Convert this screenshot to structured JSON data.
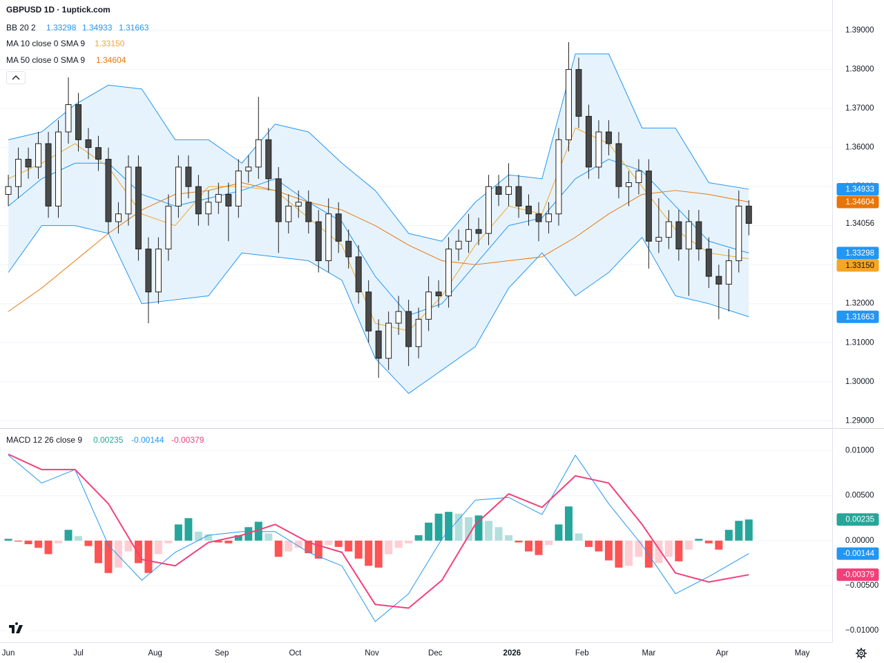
{
  "chart_data": [
    {
      "type": "candlestick",
      "title": "GBPUSD 1D · 1uptick.com",
      "xlim": [
        -2.5,
        247
      ],
      "xticks": [
        {
          "value": 0,
          "label": "Jun"
        },
        {
          "value": 21,
          "label": "Jul"
        },
        {
          "value": 44,
          "label": "Aug"
        },
        {
          "value": 64,
          "label": "Sep"
        },
        {
          "value": 86,
          "label": "Oct"
        },
        {
          "value": 109,
          "label": "Nov"
        },
        {
          "value": 128,
          "label": "Dec"
        },
        {
          "value": 151,
          "label": "2026"
        },
        {
          "value": 172,
          "label": "Feb"
        },
        {
          "value": 192,
          "label": "Mar"
        },
        {
          "value": 214,
          "label": "Apr"
        },
        {
          "value": 238,
          "label": "May"
        }
      ],
      "ylim": [
        1.2881,
        1.3978
      ],
      "yticks": [
        {
          "value": 1.39,
          "label": "1.39000"
        },
        {
          "value": 1.38,
          "label": "1.38000"
        },
        {
          "value": 1.37,
          "label": "1.37000"
        },
        {
          "value": 1.36,
          "label": "1.36000"
        },
        {
          "value": 1.35,
          "label": "1.35000"
        },
        {
          "value": 1.34,
          "label": "1.34000"
        },
        {
          "value": 1.33,
          "label": "1.33000"
        },
        {
          "value": 1.32,
          "label": "1.32000"
        },
        {
          "value": 1.31,
          "label": "1.31000"
        },
        {
          "value": 1.3,
          "label": "1.30000"
        },
        {
          "value": 1.29,
          "label": "1.29000"
        }
      ],
      "grid": true,
      "up_color": "#ffffff",
      "down_color": "#4a4a4a",
      "wick_color": "#1e1e1e",
      "x": [
        0,
        3,
        6,
        9,
        12,
        15,
        18,
        21,
        24,
        27,
        30,
        33,
        36,
        39,
        42,
        45,
        48,
        51,
        54,
        57,
        60,
        63,
        66,
        69,
        72,
        75,
        78,
        81,
        84,
        87,
        90,
        93,
        96,
        99,
        102,
        105,
        108,
        111,
        114,
        117,
        120,
        123,
        126,
        129,
        132,
        135,
        138,
        141,
        144,
        147,
        150,
        153,
        156,
        159,
        162,
        165,
        168,
        171,
        174,
        177,
        180,
        183,
        186,
        189,
        192,
        195,
        198,
        201,
        204,
        207,
        210,
        213,
        216,
        219,
        222
      ],
      "open": [
        1.348,
        1.35,
        1.357,
        1.355,
        1.361,
        1.345,
        1.364,
        1.371,
        1.362,
        1.36,
        1.357,
        1.341,
        1.343,
        1.355,
        1.334,
        1.323,
        1.334,
        1.345,
        1.355,
        1.35,
        1.343,
        1.346,
        1.348,
        1.345,
        1.354,
        1.355,
        1.362,
        1.352,
        1.341,
        1.345,
        1.346,
        1.341,
        1.331,
        1.343,
        1.336,
        1.332,
        1.323,
        1.313,
        1.306,
        1.315,
        1.318,
        1.309,
        1.316,
        1.323,
        1.322,
        1.334,
        1.336,
        1.339,
        1.338,
        1.35,
        1.348,
        1.35,
        1.345,
        1.343,
        1.341,
        1.343,
        1.362,
        1.38,
        1.368,
        1.355,
        1.364,
        1.361,
        1.35,
        1.351,
        1.354,
        1.336,
        1.337,
        1.341,
        1.334,
        1.341,
        1.334,
        1.327,
        1.325,
        1.331,
        1.345
      ],
      "high": [
        1.353,
        1.36,
        1.36,
        1.364,
        1.364,
        1.367,
        1.378,
        1.374,
        1.365,
        1.363,
        1.36,
        1.346,
        1.358,
        1.358,
        1.337,
        1.337,
        1.348,
        1.358,
        1.358,
        1.353,
        1.349,
        1.351,
        1.351,
        1.357,
        1.358,
        1.373,
        1.365,
        1.355,
        1.348,
        1.349,
        1.349,
        1.344,
        1.347,
        1.346,
        1.339,
        1.335,
        1.326,
        1.316,
        1.318,
        1.322,
        1.321,
        1.319,
        1.327,
        1.326,
        1.337,
        1.339,
        1.343,
        1.342,
        1.353,
        1.353,
        1.356,
        1.353,
        1.348,
        1.346,
        1.346,
        1.365,
        1.387,
        1.383,
        1.371,
        1.367,
        1.367,
        1.364,
        1.354,
        1.357,
        1.357,
        1.347,
        1.344,
        1.344,
        1.344,
        1.344,
        1.337,
        1.33,
        1.334,
        1.349,
        1.3465
      ],
      "low": [
        1.345,
        1.347,
        1.352,
        1.352,
        1.342,
        1.342,
        1.361,
        1.359,
        1.357,
        1.354,
        1.338,
        1.338,
        1.34,
        1.331,
        1.315,
        1.32,
        1.331,
        1.342,
        1.347,
        1.34,
        1.34,
        1.343,
        1.336,
        1.342,
        1.351,
        1.352,
        1.349,
        1.333,
        1.338,
        1.342,
        1.338,
        1.328,
        1.328,
        1.333,
        1.329,
        1.32,
        1.31,
        1.301,
        1.303,
        1.312,
        1.304,
        1.306,
        1.313,
        1.319,
        1.319,
        1.331,
        1.333,
        1.335,
        1.335,
        1.345,
        1.345,
        1.342,
        1.34,
        1.336,
        1.338,
        1.34,
        1.359,
        1.365,
        1.352,
        1.352,
        1.358,
        1.347,
        1.345,
        1.348,
        1.329,
        1.333,
        1.334,
        1.331,
        1.322,
        1.331,
        1.324,
        1.316,
        1.318,
        1.328,
        1.3375
      ],
      "close": [
        1.35,
        1.357,
        1.355,
        1.361,
        1.345,
        1.364,
        1.371,
        1.362,
        1.36,
        1.357,
        1.341,
        1.343,
        1.355,
        1.334,
        1.323,
        1.334,
        1.345,
        1.355,
        1.35,
        1.343,
        1.346,
        1.348,
        1.345,
        1.354,
        1.355,
        1.362,
        1.352,
        1.341,
        1.345,
        1.346,
        1.341,
        1.331,
        1.343,
        1.336,
        1.332,
        1.323,
        1.313,
        1.306,
        1.315,
        1.318,
        1.309,
        1.316,
        1.323,
        1.322,
        1.334,
        1.336,
        1.339,
        1.338,
        1.35,
        1.348,
        1.35,
        1.345,
        1.343,
        1.341,
        1.343,
        1.362,
        1.38,
        1.368,
        1.355,
        1.364,
        1.361,
        1.35,
        1.351,
        1.354,
        1.336,
        1.337,
        1.341,
        1.334,
        1.341,
        1.334,
        1.327,
        1.325,
        1.331,
        1.345,
        1.34056
      ],
      "lines_x": [
        0,
        10,
        20,
        30,
        40,
        50,
        60,
        70,
        80,
        90,
        100,
        110,
        120,
        130,
        140,
        150,
        160,
        170,
        180,
        190,
        200,
        210,
        222
      ],
      "bb": {
        "name": "BB 20 2",
        "color": "#2196f3",
        "fill": "#e3f2fd",
        "basis": [
          1.345,
          1.352,
          1.356,
          1.356,
          1.348,
          1.345,
          1.347,
          1.349,
          1.352,
          1.346,
          1.341,
          1.327,
          1.317,
          1.32,
          1.33,
          1.34,
          1.342,
          1.352,
          1.357,
          1.354,
          1.345,
          1.336,
          1.33298
        ],
        "upper": [
          1.362,
          1.364,
          1.371,
          1.376,
          1.375,
          1.362,
          1.362,
          1.356,
          1.366,
          1.364,
          1.356,
          1.349,
          1.338,
          1.336,
          1.346,
          1.353,
          1.352,
          1.384,
          1.384,
          1.365,
          1.365,
          1.351,
          1.34933
        ],
        "lower": [
          1.328,
          1.34,
          1.34,
          1.338,
          1.32,
          1.321,
          1.322,
          1.333,
          1.332,
          1.331,
          1.326,
          1.306,
          1.297,
          1.303,
          1.309,
          1.324,
          1.333,
          1.322,
          1.328,
          1.337,
          1.322,
          1.32,
          1.31663
        ]
      },
      "ma": [
        {
          "name": "MA 10 close 0 SMA 9",
          "color": "#f5a623",
          "last_label": "1.33150",
          "values": [
            1.352,
            1.356,
            1.361,
            1.355,
            1.343,
            1.34,
            1.35,
            1.35,
            1.349,
            1.342,
            1.335,
            1.315,
            1.313,
            1.322,
            1.335,
            1.345,
            1.343,
            1.365,
            1.361,
            1.35,
            1.339,
            1.333,
            1.3315
          ]
        },
        {
          "name": "MA 50 close 0 SMA 9",
          "color": "#e8750a",
          "values": [
            1.318,
            1.324,
            1.331,
            1.338,
            1.344,
            1.348,
            1.349,
            1.351,
            1.349,
            1.346,
            1.344,
            1.34,
            1.335,
            1.331,
            1.33,
            1.331,
            1.332,
            1.337,
            1.343,
            1.348,
            1.349,
            1.348,
            1.34604
          ]
        }
      ]
    },
    {
      "type": "macd",
      "title": "MACD 12 26 close 9",
      "ylim": [
        -0.0113,
        0.0125
      ],
      "yticks": [
        {
          "value": 0.01,
          "label": "0.01000"
        },
        {
          "value": 0.005,
          "label": "0.00500"
        },
        {
          "value": 0,
          "label": "0.00000"
        },
        {
          "value": -0.005,
          "label": "−0.00500"
        },
        {
          "value": -0.01,
          "label": "−0.01000"
        }
      ],
      "grid": true,
      "histogram": {
        "colors": [
          "#26a69a",
          "#b2dfdb",
          "#ff5252",
          "#ffcdd2"
        ],
        "values": [
          0.0002,
          -0.0001,
          -0.0004,
          -0.0008,
          -0.0015,
          -0.0003,
          0.0012,
          0.0005,
          -0.0006,
          -0.0025,
          -0.0036,
          -0.003,
          -0.0012,
          -0.0025,
          -0.0036,
          -0.0015,
          -0.0003,
          0.0018,
          0.0025,
          0.001,
          0.0007,
          -0.0002,
          -0.0003,
          0.0006,
          0.0015,
          0.0021,
          0.0008,
          -0.0018,
          -0.0012,
          -0.0008,
          -0.0014,
          -0.002,
          -0.0005,
          -0.0007,
          -0.0012,
          -0.002,
          -0.0028,
          -0.003,
          -0.0015,
          -0.0008,
          -0.0003,
          0.0006,
          0.002,
          0.003,
          0.0032,
          0.003,
          0.0026,
          0.0028,
          0.0022,
          0.0015,
          0.0006,
          -0.0002,
          -0.0012,
          -0.0016,
          -0.0005,
          0.0018,
          0.0038,
          0.0008,
          -0.0007,
          -0.0012,
          -0.0022,
          -0.003,
          -0.0028,
          -0.0018,
          -0.003,
          -0.0025,
          -0.0018,
          -0.0023,
          -0.001,
          0.0002,
          -0.0003,
          -0.001,
          0.0012,
          0.0022,
          0.00235
        ]
      },
      "macd": {
        "color": "#2196f3",
        "values": [
          0.0095,
          0.0064,
          0.0079,
          -0.0005,
          -0.0044,
          -0.0013,
          0.0006,
          0.001,
          0.001,
          -0.0013,
          -0.0028,
          -0.009,
          -0.0059,
          0.0002,
          0.0045,
          0.0048,
          0.0029,
          0.0095,
          0.0041,
          -0.0005,
          -0.0059,
          -0.004,
          -0.00144
        ]
      },
      "signal": {
        "color": "#f23f7a",
        "values": [
          0.0096,
          0.0079,
          0.0079,
          0.0041,
          -0.0021,
          -0.0028,
          -0.0002,
          0.0006,
          0.0018,
          -0.0002,
          -0.0013,
          -0.0071,
          -0.0075,
          -0.0044,
          0.0018,
          0.0052,
          0.0037,
          0.0072,
          0.0064,
          0.0018,
          -0.0036,
          -0.0046,
          -0.00379
        ]
      }
    }
  ]
}
